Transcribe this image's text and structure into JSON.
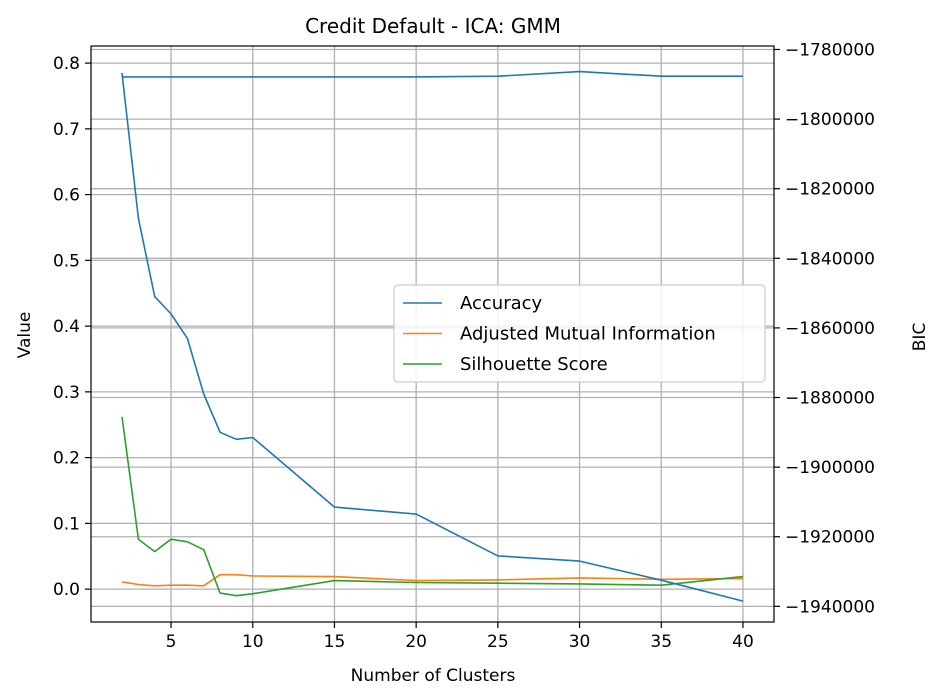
{
  "chart_data": {
    "type": "line",
    "title": "Credit Default - ICA: GMM",
    "xlabel": "Number of Clusters",
    "ylabel": "Value",
    "y2label": "BIC",
    "grid": true,
    "legend_position": "center-right",
    "xlim": [
      0.1,
      41.9
    ],
    "ylim": [
      -0.05,
      0.826
    ],
    "y2lim": [
      -1944500,
      -1779000
    ],
    "x_ticks": [
      5,
      10,
      15,
      20,
      25,
      30,
      35,
      40
    ],
    "x_tick_labels": [
      "5",
      "10",
      "15",
      "20",
      "25",
      "30",
      "35",
      "40"
    ],
    "y_ticks": [
      0.0,
      0.1,
      0.2,
      0.3,
      0.4,
      0.5,
      0.6,
      0.7,
      0.8
    ],
    "y_tick_labels": [
      "0.0",
      "0.1",
      "0.2",
      "0.3",
      "0.4",
      "0.5",
      "0.6",
      "0.7",
      "0.8"
    ],
    "y2_ticks": [
      -1780000,
      -1800000,
      -1820000,
      -1840000,
      -1860000,
      -1880000,
      -1900000,
      -1920000,
      -1940000
    ],
    "y2_tick_labels": [
      "−1780000",
      "−1800000",
      "−1820000",
      "−1840000",
      "−1860000",
      "−1880000",
      "−1900000",
      "−1920000",
      "−1940000"
    ],
    "x": [
      2,
      3,
      4,
      5,
      6,
      7,
      8,
      9,
      10,
      15,
      20,
      25,
      30,
      35,
      40
    ],
    "series": [
      {
        "name": "Accuracy",
        "axis": "left",
        "color": "#1f77b4",
        "values": [
          0.779,
          0.779,
          0.779,
          0.779,
          0.779,
          0.779,
          0.779,
          0.779,
          0.779,
          0.779,
          0.779,
          0.78,
          0.787,
          0.78,
          0.78
        ]
      },
      {
        "name": "Adjusted Mutual Information",
        "axis": "left",
        "color": "#ff7f0e",
        "values": [
          0.011,
          0.007,
          0.005,
          0.006,
          0.006,
          0.005,
          0.022,
          0.022,
          0.02,
          0.019,
          0.013,
          0.014,
          0.017,
          0.015,
          0.016
        ]
      },
      {
        "name": "Silhouette Score",
        "axis": "left",
        "color": "#2ca02c",
        "values": [
          0.262,
          0.076,
          0.057,
          0.076,
          0.072,
          0.06,
          -0.006,
          -0.01,
          -0.007,
          0.013,
          0.01,
          0.009,
          0.008,
          0.006,
          0.019
        ]
      },
      {
        "name": "BIC",
        "axis": "right",
        "color": "#1f77b4",
        "values": [
          -1786800,
          -1828500,
          -1851000,
          -1856000,
          -1863000,
          -1879000,
          -1890000,
          -1892000,
          -1891500,
          -1911500,
          -1913500,
          -1925500,
          -1927000,
          -1932500,
          -1938500
        ]
      }
    ]
  }
}
